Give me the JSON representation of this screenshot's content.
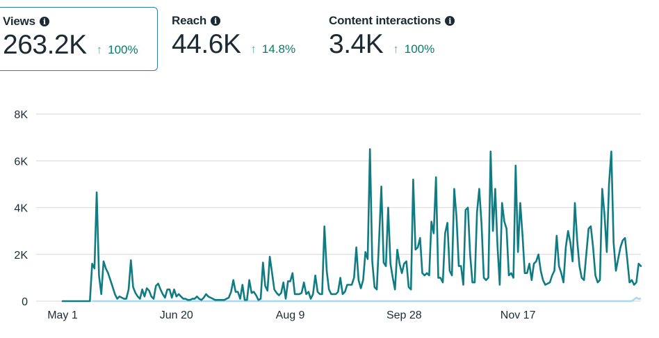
{
  "metrics": [
    {
      "title": "Views",
      "value": "263.2K",
      "delta": "100%",
      "direction": "up",
      "selected": true
    },
    {
      "title": "Reach",
      "value": "44.6K",
      "delta": "14.8%",
      "direction": "up",
      "selected": false
    },
    {
      "title": "Content interactions",
      "value": "3.4K",
      "delta": "100%",
      "direction": "up",
      "selected": false
    }
  ],
  "icons": {
    "info": "info-icon",
    "arrow_up": "arrow-up-icon"
  },
  "colors": {
    "primary_line": "#0f7b82",
    "secondary_line": "#a8d8f0",
    "selected_border": "#2a7fb8",
    "delta_text": "#0a7a68",
    "delta_arrow": "#5fae94",
    "grid": "#dddddd"
  },
  "chart_data": {
    "type": "line",
    "title": "",
    "xlabel": "",
    "ylabel": "",
    "ylim": [
      0,
      8000
    ],
    "yticks": [
      0,
      2000,
      4000,
      6000,
      8000
    ],
    "ytick_labels": [
      "0",
      "2K",
      "4K",
      "6K",
      "8K"
    ],
    "x_start": "May 1",
    "xtick_labels": [
      "May 1",
      "Jun 20",
      "Aug 9",
      "Sep 28",
      "Nov 17"
    ],
    "xtick_day_index": [
      0,
      50,
      100,
      150,
      200
    ],
    "grid": true,
    "legend": "none",
    "series": [
      {
        "name": "Views",
        "color": "#0f7b82",
        "values": [
          0,
          0,
          0,
          0,
          0,
          0,
          0,
          0,
          0,
          0,
          0,
          0,
          0,
          1600,
          1400,
          4650,
          1100,
          300,
          1700,
          1400,
          1200,
          900,
          600,
          300,
          100,
          200,
          150,
          100,
          100,
          500,
          1750,
          600,
          350,
          200,
          100,
          500,
          200,
          550,
          450,
          200,
          100,
          650,
          750,
          500,
          300,
          150,
          500,
          500,
          150,
          500,
          200,
          300,
          200,
          100,
          100,
          50,
          50,
          100,
          100,
          200,
          100,
          50,
          150,
          300,
          200,
          150,
          100,
          50,
          50,
          50,
          50,
          50,
          100,
          150,
          400,
          900,
          400,
          400,
          100,
          700,
          50,
          50,
          900,
          350,
          400,
          250,
          50,
          100,
          1650,
          650,
          450,
          1900,
          1200,
          500,
          350,
          250,
          350,
          800,
          100,
          850,
          850,
          1200,
          300,
          300,
          300,
          350,
          800,
          300,
          400,
          100,
          300,
          1100,
          400,
          300,
          300,
          3200,
          1300,
          500,
          300,
          300,
          300,
          400,
          1000,
          300,
          400,
          700,
          700,
          700,
          1000,
          2300,
          900,
          550,
          900,
          2100,
          1800,
          6500,
          1700,
          600,
          500,
          2600,
          4900,
          1650,
          1500,
          4000,
          1600,
          1000,
          500,
          2200,
          1600,
          1200,
          1600,
          1700,
          600,
          500,
          5200,
          2200,
          2300,
          2700,
          1200,
          1100,
          1200,
          1100,
          3400,
          2900,
          5300,
          1000,
          1000,
          800,
          2900,
          3350,
          1300,
          1100,
          4800,
          3600,
          1500,
          1500,
          700,
          3900,
          4000,
          2000,
          800,
          800,
          3800,
          4800,
          3300,
          1000,
          900,
          1000,
          6400,
          3000,
          4800,
          2400,
          700,
          4200,
          3400,
          3100,
          1100,
          1200,
          1000,
          5800,
          2100,
          4200,
          2800,
          1200,
          1200,
          1600,
          900,
          1600,
          1700,
          2000,
          1300,
          900,
          700,
          750,
          800,
          1100,
          1300,
          2800,
          1500,
          1200,
          800,
          2300,
          3000,
          2500,
          1700,
          4200,
          2600,
          1500,
          1000,
          900,
          2000,
          3100,
          3200,
          2300,
          1100,
          800,
          900,
          4800,
          3700,
          2100,
          5000,
          6400,
          2500,
          1300,
          1800,
          2300,
          2600,
          2700,
          1800,
          800,
          900,
          700,
          800,
          1600,
          1500
        ]
      },
      {
        "name": "Baseline",
        "color": "#a8d8f0",
        "values": "near zero throughout; small rise (~100-200) at the far right end"
      }
    ]
  }
}
